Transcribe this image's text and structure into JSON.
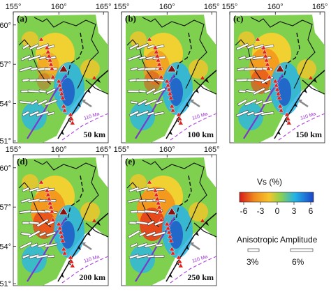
{
  "figure": {
    "lon_ticks": [
      "155°",
      "160°",
      "165°"
    ],
    "lat_ticks": [
      "60°",
      "57°",
      "54°",
      "51°"
    ],
    "panels": [
      {
        "label": "(a)",
        "depth": "50 km"
      },
      {
        "label": "(b)",
        "depth": "100 km"
      },
      {
        "label": "(c)",
        "depth": "150 km"
      },
      {
        "label": "(d)",
        "depth": "200 km"
      },
      {
        "label": "(e)",
        "depth": "250 km"
      }
    ],
    "plate_age_label": "110 Ma"
  },
  "colorbar": {
    "title": "Vs (%)",
    "ticks": [
      "-6",
      "-3",
      "0",
      "3",
      "6"
    ],
    "colors": [
      "#d7191c",
      "#f08a1c",
      "#f6c52b",
      "#8ed14d",
      "#24b2e8",
      "#1a44c8"
    ]
  },
  "anisotropy_legend": {
    "title": "Anisotropic Amplitude",
    "items": [
      {
        "label": "3%",
        "amplitude": 3
      },
      {
        "label": "6%",
        "amplitude": 6
      }
    ]
  }
}
